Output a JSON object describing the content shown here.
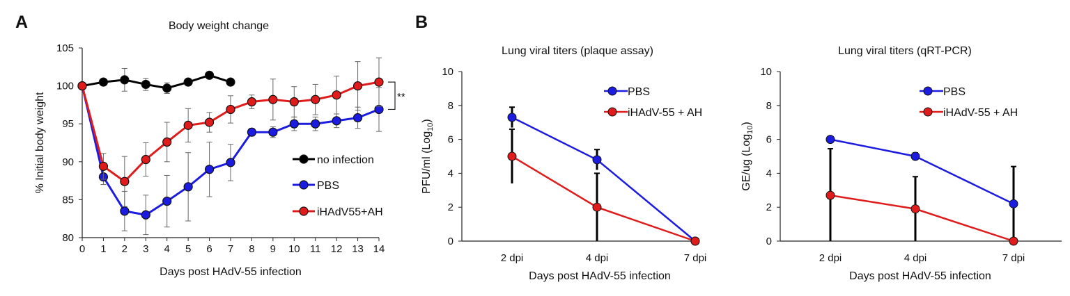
{
  "panels": {
    "a": "A",
    "b": "B"
  },
  "chart_data": [
    {
      "type": "line",
      "title": "Body weight change",
      "xlabel": "Days post HAdV-55 infection",
      "ylabel": "% Initial body weight",
      "xlim": [
        0,
        14
      ],
      "ylim": [
        80,
        105
      ],
      "xticks": [
        "0",
        "1",
        "2",
        "3",
        "4",
        "5",
        "6",
        "7",
        "8",
        "9",
        "10",
        "11",
        "12",
        "13",
        "14"
      ],
      "yticks": [
        "80",
        "85",
        "90",
        "95",
        "100",
        "105"
      ],
      "legend_position": "lower-right",
      "annotation": "**",
      "series": [
        {
          "name": "no infection",
          "color": "#000000",
          "x": [
            0,
            1,
            2,
            3,
            4,
            5,
            6,
            7
          ],
          "y": [
            100,
            100.5,
            100.8,
            100.2,
            99.7,
            100.5,
            101.4,
            100.5
          ],
          "err": [
            0,
            0.4,
            1.5,
            0.8,
            0.7,
            0.3,
            0.3,
            0.3
          ]
        },
        {
          "name": "PBS",
          "color": "#1c1ce0",
          "x": [
            0,
            1,
            2,
            3,
            4,
            5,
            6,
            7,
            8,
            9,
            10,
            11,
            12,
            13,
            14
          ],
          "y": [
            100,
            88.0,
            83.5,
            83.0,
            84.8,
            86.7,
            89.0,
            89.9,
            93.9,
            93.9,
            95.0,
            95.0,
            95.4,
            95.8,
            96.9
          ],
          "err": [
            0,
            1.0,
            2.6,
            2.6,
            3.4,
            4.5,
            3.6,
            2.4,
            0.5,
            0.7,
            0.9,
            0.9,
            0.9,
            1.4,
            2.9
          ]
        },
        {
          "name": "iHAdV55+AH",
          "color": "#e01b1b",
          "x": [
            0,
            1,
            2,
            3,
            4,
            5,
            6,
            7,
            8,
            9,
            10,
            11,
            12,
            13,
            14
          ],
          "y": [
            100,
            89.4,
            87.4,
            90.3,
            92.6,
            94.8,
            95.2,
            96.9,
            97.9,
            98.2,
            97.9,
            98.2,
            98.8,
            100.0,
            100.5
          ],
          "err": [
            0,
            1.7,
            3.3,
            2.2,
            2.6,
            2.2,
            1.3,
            1.8,
            0.9,
            2.7,
            2.0,
            2.0,
            2.5,
            3.2,
            3.2
          ]
        }
      ]
    },
    {
      "type": "line",
      "title": "Lung viral titers (plaque assay)",
      "xlabel": "Days post HAdV-55 infection",
      "ylabel": "PFU/ml (Log",
      "ylabel_sub": "10",
      "ylabel_end": ")",
      "categories": [
        "2 dpi",
        "4 dpi",
        "7 dpi"
      ],
      "yticks": [
        "0",
        "2",
        "4",
        "6",
        "8",
        "10"
      ],
      "ylim": [
        0,
        10
      ],
      "legend_position": "top-right",
      "series": [
        {
          "name": "PBS",
          "color": "#1c1ce0",
          "values": [
            7.3,
            4.8,
            0
          ],
          "err": [
            0.6,
            0.6,
            0
          ]
        },
        {
          "name": "iHAdV-55 + AH",
          "color": "#e01b1b",
          "values": [
            5.0,
            2.0,
            0
          ],
          "err": [
            1.6,
            2.0,
            0
          ]
        }
      ]
    },
    {
      "type": "line",
      "title": "Lung viral titers (qRT-PCR)",
      "xlabel": "Days post HAdV-55 infection",
      "ylabel": "GE/ug (Log",
      "ylabel_sub": "10",
      "ylabel_end": ")",
      "categories": [
        "2 dpi",
        "4 dpi",
        "7 dpi"
      ],
      "yticks": [
        "0",
        "2",
        "4",
        "6",
        "8",
        "10"
      ],
      "ylim": [
        0,
        10
      ],
      "legend_position": "top-right",
      "series": [
        {
          "name": "PBS",
          "color": "#1c1ce0",
          "values": [
            6.0,
            5.0,
            2.2
          ],
          "err": [
            0.1,
            0.2,
            2.2
          ]
        },
        {
          "name": "iHAdV-55 + AH",
          "color": "#e01b1b",
          "values": [
            2.7,
            1.9,
            0
          ],
          "err": [
            2.75,
            1.9,
            0
          ]
        }
      ]
    }
  ]
}
